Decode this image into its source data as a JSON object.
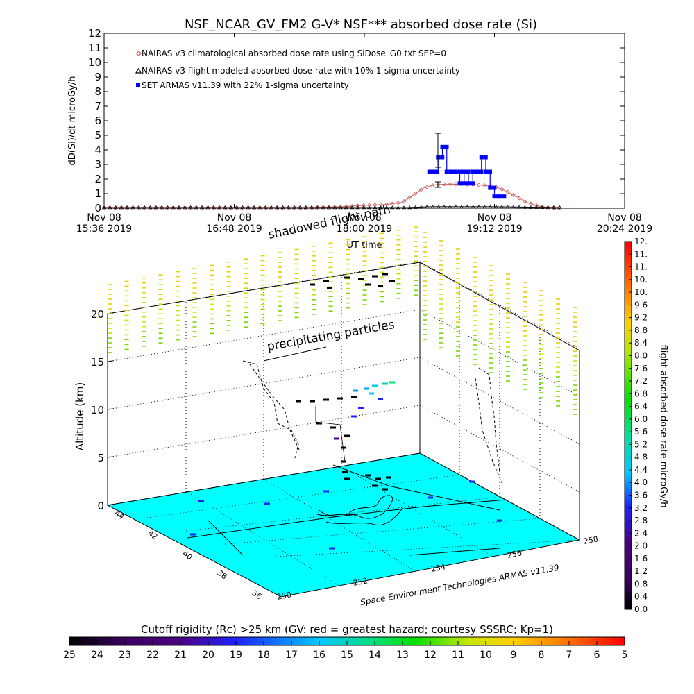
{
  "title": "NSF_NCAR_GV_FM2 G-V* NSF*** absorbed dose rate (Si)",
  "timeseries": {
    "ylabel": "dD(Si)/dt microGy/h",
    "xlabel": "UT time",
    "legend": [
      "NAIRAS v3 climatological absorbed dose rate using SiDose_G0.txt SEP=0",
      "NAIRAS v3 flight modeled absorbed dose rate with 10% 1-sigma uncertainty",
      "SET ARMAS v11.39 with 22% 1-sigma uncertainty"
    ],
    "xtick_dates": [
      "Nov 08",
      "Nov 08",
      "Nov 08",
      "Nov 08",
      "Nov 08",
      "Nov 08"
    ],
    "xtick_times": [
      "15:36 2019",
      "16:48 2019",
      "18:00 2019",
      "19:12 2019",
      "20:24 2019",
      ""
    ],
    "yticks": [
      "0",
      "1",
      "2",
      "3",
      "4",
      "5",
      "6",
      "7",
      "8",
      "9",
      "10",
      "11",
      "12"
    ]
  },
  "chart_data": [
    {
      "type": "line",
      "title": "NSF_NCAR_GV_FM2 G-V* NSF*** absorbed dose rate (Si)",
      "xlabel": "UT time",
      "ylabel": "dD(Si)/dt microGy/h",
      "x_unit": "hours UT on 2019-11-08",
      "xlim": [
        15.6,
        20.4
      ],
      "ylim": [
        0,
        12
      ],
      "xticks": [
        "15:36",
        "16:48",
        "18:00",
        "19:12",
        "20:24"
      ],
      "legend_position": "top-left",
      "series": [
        {
          "name": "NAIRAS v3 climatological absorbed dose rate using SiDose_G0.txt SEP=0",
          "color": "#cd5c5c",
          "marker": "diamond",
          "x": [
            15.6,
            16.0,
            16.5,
            17.0,
            17.5,
            17.8,
            18.0,
            18.2,
            18.35,
            18.45,
            18.55,
            18.65,
            18.75,
            18.9,
            19.05,
            19.2,
            19.3,
            19.4,
            19.5,
            19.6,
            19.7,
            19.8
          ],
          "values": [
            0.05,
            0.05,
            0.05,
            0.05,
            0.05,
            0.1,
            0.2,
            0.25,
            0.4,
            0.9,
            1.4,
            1.6,
            1.65,
            1.65,
            1.6,
            1.5,
            1.2,
            0.8,
            0.4,
            0.15,
            0.05,
            0.05
          ]
        },
        {
          "name": "NAIRAS v3 flight modeled absorbed dose rate with 10% 1-sigma uncertainty",
          "color": "#000000",
          "marker": "triangle",
          "x": [
            15.6,
            16.5,
            17.5,
            18.4,
            18.6,
            18.7,
            19.2,
            19.8
          ],
          "values": [
            0.05,
            0.05,
            0.05,
            0.05,
            0.1,
            0.1,
            0.1,
            0.05
          ]
        },
        {
          "name": "SET ARMAS v11.39 with 22% 1-sigma uncertainty",
          "color": "#0000ff",
          "marker": "square",
          "x": [
            18.6,
            18.63,
            18.68,
            18.72,
            18.76,
            18.8,
            18.84,
            18.88,
            18.92,
            18.96,
            19.0,
            19.04,
            19.08,
            19.12,
            19.16,
            19.2,
            19.25
          ],
          "values": [
            2.5,
            2.5,
            3.5,
            4.2,
            2.5,
            2.5,
            2.5,
            1.7,
            2.5,
            1.7,
            2.5,
            2.5,
            3.5,
            2.5,
            1.4,
            0.8,
            0.8
          ]
        }
      ]
    },
    {
      "type": "scatter",
      "xlabel": "",
      "ylabel": "Altitude (km)",
      "zticks": [
        "0",
        "5",
        "10",
        "15",
        "20"
      ],
      "longitude_ticks": [
        "250",
        "252",
        "254",
        "256",
        "258"
      ],
      "latitude_ticks": [
        "36",
        "38",
        "40",
        "42",
        "44"
      ],
      "annotations": [
        "shadowed flight path",
        "precipitating particles",
        "Space Environment Technologies ARMAS v11.39"
      ],
      "grid": true
    },
    {
      "type": "heatmap",
      "name": "flight absorbed dose rate microGy/h",
      "colorbar_ticks": [
        "0.0",
        "0.4",
        "0.8",
        "1.2",
        "1.6",
        "2.0",
        "2.4",
        "2.8",
        "3.2",
        "3.6",
        "4.0",
        "4.4",
        "4.8",
        "5.2",
        "5.6",
        "6.0",
        "6.4",
        "6.8",
        "7.2",
        "7.6",
        "8.0",
        "8.4",
        "8.8",
        "9.2",
        "9.6",
        "10.",
        "10.",
        "11.",
        "11.",
        "12."
      ],
      "orientation": "vertical"
    },
    {
      "type": "heatmap",
      "name": "Cutoff rigidity (Rc) >25 km (GV: red = greatest hazard; courtesy SSSRC; Kp=1)",
      "colorbar_ticks": [
        "25",
        "24",
        "23",
        "22",
        "21",
        "20",
        "19",
        "18",
        "17",
        "16",
        "15",
        "14",
        "13",
        "12",
        "11",
        "10",
        "9",
        "8",
        "7",
        "6",
        "5"
      ],
      "orientation": "horizontal"
    }
  ],
  "scene": {
    "zlabel": "Altitude (km)",
    "annotation_shadow": "shadowed flight path",
    "annotation_precip": "precipitating particles",
    "credit": "Space Environment Technologies ARMAS v11.39"
  },
  "colorbar_right": {
    "label": "flight absorbed dose rate microGy/h"
  },
  "colorbar_bottom": {
    "label": "Cutoff rigidity (Rc) >25 km (GV: red = greatest hazard; courtesy SSSRC; Kp=1)"
  },
  "colors": {
    "ground": "#00ffff",
    "nairas_clim": "#cd5c5c",
    "nairas_flight": "#000000",
    "armas": "#0000ff"
  }
}
